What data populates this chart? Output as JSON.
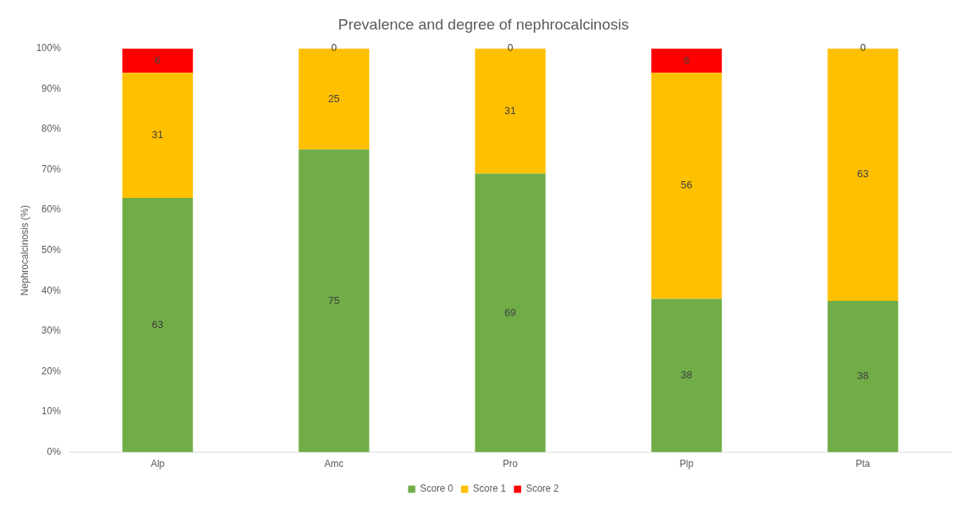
{
  "chart_data": {
    "type": "bar",
    "title": "Prevalence and degree of nephrocalcinosis",
    "ylabel": "Nephrocalcinosis (%)",
    "stacked": true,
    "categories": [
      "Alp",
      "Amc",
      "Pro",
      "Plp",
      "Pta"
    ],
    "series": [
      {
        "name": "Score 0",
        "color": "#70ad47",
        "values": [
          63,
          75,
          69,
          38,
          37.5
        ],
        "value_labels": [
          "63",
          "75",
          "69",
          "38",
          "38"
        ]
      },
      {
        "name": "Score 1",
        "color": "#ffc000",
        "values": [
          31,
          25,
          31,
          56,
          62.5
        ],
        "value_labels": [
          "31",
          "25",
          "31",
          "56",
          "63"
        ]
      },
      {
        "name": "Score 2",
        "color": "#ff0000",
        "values": [
          6,
          0,
          0,
          6,
          0
        ],
        "value_labels": [
          "6",
          "0",
          "0",
          "6",
          "0"
        ]
      }
    ],
    "ylim": [
      0,
      100
    ],
    "yticks": [
      {
        "value": 0,
        "label": "0%"
      },
      {
        "value": 10,
        "label": "10%"
      },
      {
        "value": 20,
        "label": "20%"
      },
      {
        "value": 30,
        "label": "30%"
      },
      {
        "value": 40,
        "label": "40%"
      },
      {
        "value": 50,
        "label": "50%"
      },
      {
        "value": 60,
        "label": "60%"
      },
      {
        "value": 70,
        "label": "70%"
      },
      {
        "value": 80,
        "label": "80%"
      },
      {
        "value": 90,
        "label": "90%"
      },
      {
        "value": 100,
        "label": "100%"
      }
    ],
    "grid": false,
    "legend": "bottom"
  }
}
